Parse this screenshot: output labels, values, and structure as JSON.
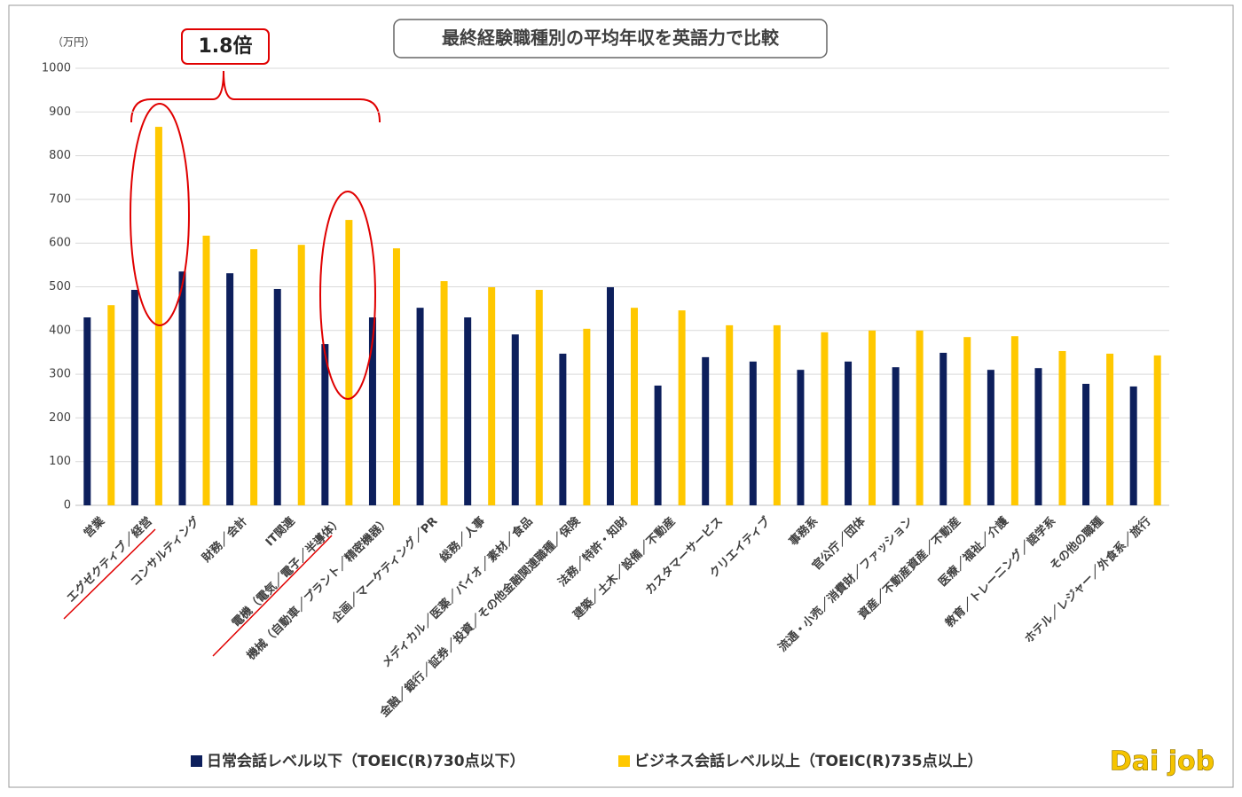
{
  "chart_data": {
    "type": "bar",
    "title": "最終経験職種別の平均年収を英語力で比較",
    "y_unit": "（万円）",
    "annotation": "1.8倍",
    "categories": [
      "営業",
      "エグゼクティブ／経営",
      "コンサルティング",
      "財務／会計",
      "IT関連",
      "電機（電気／電子／半導体）",
      "機械（自動車／プラント／精密機器）",
      "企画／マーケティング／PR",
      "総務／人事",
      "メディカル／医薬／バイオ／素材／食品",
      "金融／銀行／証券／投資／その他金融関連職種／保険",
      "法務／特許・知財",
      "建築／土木／設備／不動産",
      "カスタマーサービス",
      "クリエイティブ",
      "事務系",
      "官公庁／団体",
      "流通・小売／消費財／ファッション",
      "資産／不動産資産／不動産",
      "医療／福祉／介護",
      "教育／トレーニング／語学系",
      "その他の職種",
      "ホテル／レジャー／外食系／旅行"
    ],
    "series": [
      {
        "name": "日常会話レベル以下（TOEIC(R)730点以下）",
        "color": "#0d1f5c",
        "values": [
          430,
          493,
          535,
          531,
          495,
          369,
          430,
          452,
          430,
          391,
          347,
          499,
          274,
          339,
          329,
          310,
          329,
          316,
          349,
          310,
          314,
          278,
          272
        ]
      },
      {
        "name": "ビジネス会話レベル以上（TOEIC(R)735点以上）",
        "color": "#ffc800",
        "values": [
          458,
          866,
          617,
          586,
          596,
          653,
          588,
          513,
          499,
          493,
          404,
          452,
          446,
          412,
          412,
          396,
          400,
          400,
          385,
          387,
          353,
          347,
          343
        ]
      }
    ],
    "ylim": [
      0,
      1000
    ],
    "yticks": [
      0,
      100,
      200,
      300,
      400,
      500,
      600,
      700,
      800,
      900,
      1000
    ],
    "grid": true
  },
  "logo": "Dai job"
}
